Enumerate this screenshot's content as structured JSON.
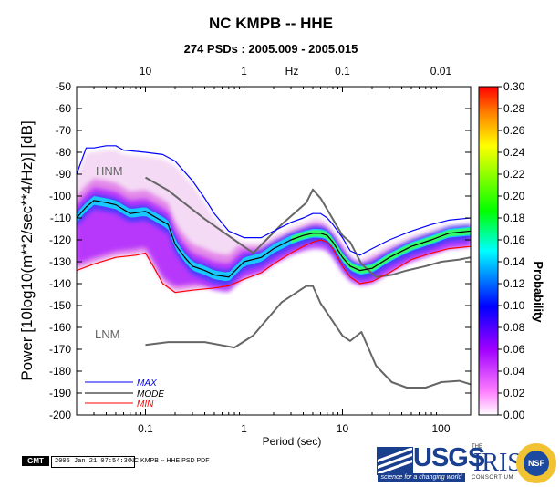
{
  "header": {
    "title": "NC KMPB -- HHE",
    "subtitle": "274 PSDs : 2005.009 - 2005.015"
  },
  "footer": {
    "gmt_label": "GMT",
    "timestamp": "2005 Jan 21 07:54:36",
    "caption": "NC KMPB -- HHE PSD PDF"
  },
  "logos": {
    "usgs_word": "USGS",
    "usgs_tag": "science for a changing world",
    "iris_the": "THE",
    "iris_word": "IRIS",
    "iris_consortium": "CONSORTIUM",
    "nsf": "NSF"
  },
  "colors": {
    "max": "#0000ff",
    "mode": "#000000",
    "min": "#ff0000",
    "model": "#666666"
  },
  "chart_data": {
    "type": "heatmap",
    "title": "NC KMPB -- HHE",
    "subtitle": "274 PSDs : 2005.009 - 2005.015",
    "xlabel": "Period (sec)",
    "ylabel": "Power [10log10(m**2/sec**4/Hz)] [dB]",
    "x_scale": "log",
    "xlim": [
      0.02,
      200
    ],
    "ylim": [
      -200,
      -50
    ],
    "x_ticks": [
      {
        "value": 0.1,
        "label": "0.1"
      },
      {
        "value": 1,
        "label": "1"
      },
      {
        "value": 10,
        "label": "10"
      },
      {
        "value": 100,
        "label": "100"
      }
    ],
    "top_axis": {
      "label": "Hz",
      "ticks": [
        {
          "value": 10,
          "label": "10"
        },
        {
          "value": 1,
          "label": "1"
        },
        {
          "value": 0.1,
          "label": "0.1"
        },
        {
          "value": 0.01,
          "label": "0.01"
        }
      ]
    },
    "y_ticks": [
      -50,
      -60,
      -70,
      -80,
      -90,
      -100,
      -110,
      -120,
      -130,
      -140,
      -150,
      -160,
      -170,
      -180,
      -190,
      -200
    ],
    "colorbar": {
      "label": "Probability",
      "range": [
        0,
        0.3
      ],
      "ticks": [
        "0.00",
        "0.02",
        "0.04",
        "0.06",
        "0.08",
        "0.10",
        "0.12",
        "0.14",
        "0.16",
        "0.18",
        "0.20",
        "0.22",
        "0.24",
        "0.26",
        "0.28",
        "0.30"
      ]
    },
    "legend": {
      "placement": "bottom-left",
      "entries": [
        {
          "name": "MAX",
          "color": "#0000ff"
        },
        {
          "name": "MODE",
          "color": "#000000"
        },
        {
          "name": "MIN",
          "color": "#ff0000"
        }
      ]
    },
    "annotations": [
      {
        "text": "HNM",
        "x": 0.04,
        "y": -88
      },
      {
        "text": "LNM",
        "x": 0.04,
        "y": -166
      }
    ],
    "series": [
      {
        "name": "MAX",
        "color": "#0000ff",
        "x": [
          0.02,
          0.025,
          0.03,
          0.04,
          0.05,
          0.06,
          0.1,
          0.15,
          0.2,
          0.3,
          0.4,
          0.5,
          0.7,
          1,
          1.5,
          2,
          3,
          4,
          5,
          6,
          7,
          8,
          10,
          12,
          15,
          20,
          30,
          50,
          80,
          120,
          200
        ],
        "y": [
          -90,
          -78,
          -78,
          -77,
          -77,
          -79,
          -80,
          -81,
          -84,
          -93,
          -101,
          -108,
          -116,
          -119,
          -119,
          -116,
          -112,
          -110,
          -108,
          -108,
          -110,
          -113,
          -119,
          -125,
          -127,
          -124,
          -120,
          -116,
          -113,
          -111,
          -110
        ]
      },
      {
        "name": "MODE",
        "color": "#000000",
        "x": [
          0.02,
          0.025,
          0.03,
          0.04,
          0.05,
          0.07,
          0.1,
          0.13,
          0.17,
          0.2,
          0.25,
          0.3,
          0.4,
          0.5,
          0.7,
          1,
          1.5,
          2,
          3,
          4,
          5,
          6,
          7,
          8,
          10,
          12,
          15,
          20,
          30,
          50,
          80,
          120,
          200
        ],
        "y": [
          -110,
          -105,
          -102,
          -103,
          -104,
          -108,
          -107,
          -110,
          -113,
          -122,
          -128,
          -132,
          -134,
          -136,
          -137,
          -130,
          -128,
          -124,
          -120,
          -118,
          -117,
          -117,
          -118,
          -121,
          -128,
          -132,
          -134,
          -133,
          -128,
          -123,
          -120,
          -117,
          -116
        ]
      },
      {
        "name": "MIN",
        "color": "#ff0000",
        "x": [
          0.02,
          0.03,
          0.05,
          0.08,
          0.1,
          0.12,
          0.15,
          0.2,
          0.3,
          0.5,
          0.7,
          1,
          1.5,
          2,
          3,
          4,
          5,
          6,
          7,
          8,
          10,
          12,
          15,
          20,
          30,
          50,
          80,
          120,
          200
        ],
        "y": [
          -134,
          -131,
          -128,
          -127,
          -126,
          -132,
          -140,
          -144,
          -143,
          -142,
          -141,
          -138,
          -135,
          -131,
          -126,
          -123,
          -121,
          -120,
          -121,
          -124,
          -132,
          -137,
          -140,
          -139,
          -135,
          -129,
          -126,
          -124,
          -123
        ]
      },
      {
        "name": "HNM",
        "color": "#666666",
        "x": [
          0.1,
          0.17,
          0.4,
          0.8,
          1.24,
          2.4,
          4.3,
          5,
          6,
          10,
          12,
          15.6,
          21.9,
          31.6,
          45,
          70,
          101,
          154,
          200
        ],
        "y": [
          -91.5,
          -97.4,
          -110.5,
          -120,
          -126,
          -113,
          -103,
          -97,
          -101,
          -118,
          -121,
          -131,
          -137,
          -136,
          -134,
          -132,
          -130,
          -129,
          -128
        ]
      },
      {
        "name": "LNM",
        "color": "#666666",
        "x": [
          0.1,
          0.17,
          0.4,
          0.8,
          1.24,
          2.4,
          4.3,
          5,
          6,
          10,
          12,
          15.6,
          21.9,
          31.6,
          45,
          70,
          101,
          154,
          200
        ],
        "y": [
          -168,
          -166.7,
          -166.7,
          -169.2,
          -163.7,
          -148.6,
          -141.1,
          -141.1,
          -149,
          -163.8,
          -166.2,
          -162.1,
          -177.5,
          -185,
          -187.5,
          -187.5,
          -185,
          -184.4,
          -186
        ]
      }
    ]
  }
}
